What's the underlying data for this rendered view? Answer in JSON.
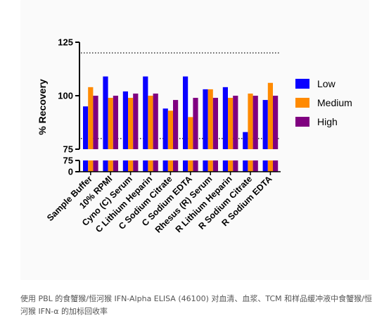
{
  "chart_data": {
    "type": "bar",
    "ylabel": "% Recovery",
    "categories": [
      "Sample Buffer",
      "10% RPMI",
      "Cyno (C) Serum",
      "C Lithium Heparin",
      "C Sodium Citrate",
      "C Sodium EDTA",
      "Rhesus (R) Serum",
      "R Lithium Heparin",
      "R Sodium Citrate",
      "R Sodium EDTA"
    ],
    "series": [
      {
        "name": "Low",
        "color": "#0a00ff",
        "values": [
          95,
          109,
          102,
          109,
          94,
          109,
          103,
          104,
          83,
          98
        ]
      },
      {
        "name": "Medium",
        "color": "#ff8a00",
        "values": [
          104,
          99,
          99,
          100,
          93,
          90,
          103,
          99,
          101,
          106
        ]
      },
      {
        "name": "High",
        "color": "#800080",
        "values": [
          100,
          100,
          101,
          101,
          98,
          99,
          99,
          100,
          100,
          100
        ]
      }
    ],
    "y_axis": {
      "upper_range": [
        75,
        125
      ],
      "lower_range": [
        0,
        75
      ],
      "broken": true,
      "upper_ticks": [
        "125",
        "100",
        "75"
      ],
      "lower_ticks": [
        "75",
        "0"
      ]
    },
    "reference_lines": [
      120,
      80
    ],
    "legend_position": "right"
  },
  "caption": "使用 PBL 的食蟹猴/恒河猴 IFN-Alpha ELISA (46100) 对血清、血浆、TCM 和样品缓冲液中食蟹猴/恒河猴 IFN-α 的加标回收率"
}
